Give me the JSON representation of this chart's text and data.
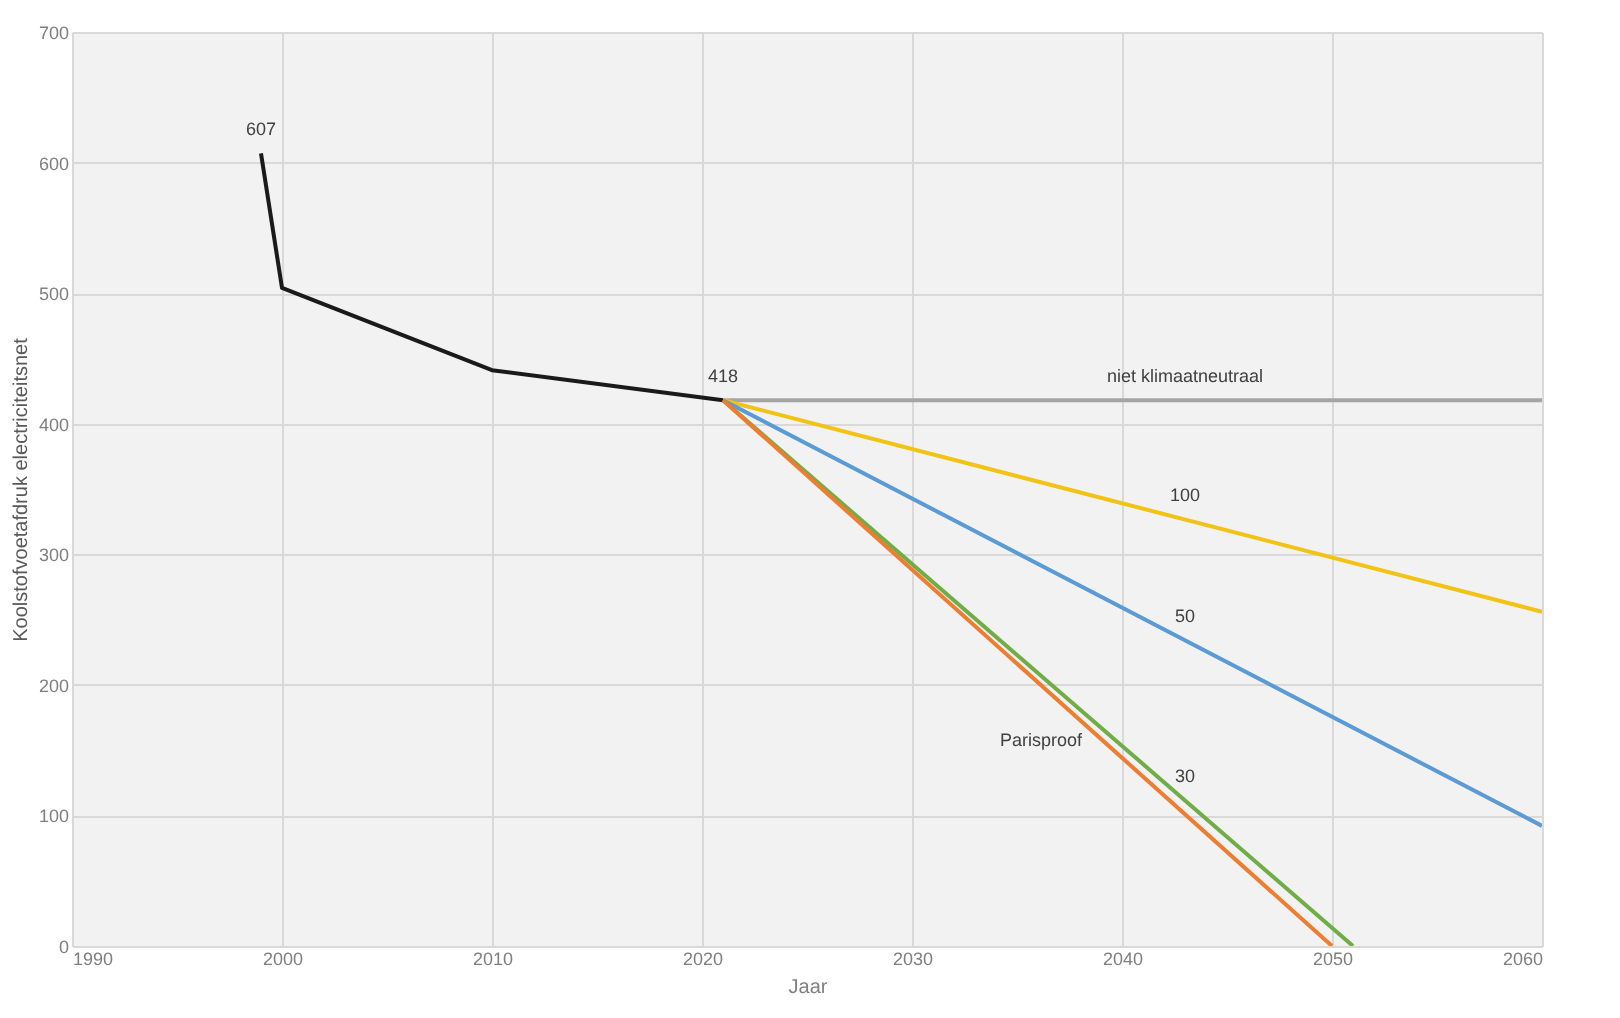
{
  "chart_data": {
    "type": "line",
    "xlabel": "Jaar",
    "ylabel": "Koolstofvoetafdruk electriciteitsnet",
    "xlim": [
      1990,
      2060
    ],
    "xticks": [
      1990,
      2000,
      2010,
      2020,
      2030,
      2040,
      2050,
      2060
    ],
    "ylim": [
      0,
      700
    ],
    "yticks": [
      0,
      100,
      200,
      300,
      400,
      500,
      600,
      700
    ],
    "grid": true,
    "marker": "none",
    "line_style": "solid",
    "series": [
      {
        "color": "#1a1a1a",
        "x": [
          1999,
          2000,
          2010,
          2021
        ],
        "values": [
          607,
          504,
          441,
          418
        ]
      },
      {
        "color": "#a5a5a5",
        "x": [
          2021,
          2060
        ],
        "values": [
          418,
          418
        ]
      },
      {
        "color": "#f2c314",
        "x": [
          2021,
          2060
        ],
        "values": [
          418,
          256
        ]
      },
      {
        "color": "#5b9bd5",
        "x": [
          2021,
          2060
        ],
        "values": [
          418,
          92
        ]
      },
      {
        "color": "#70ad47",
        "x": [
          2021,
          2051
        ],
        "values": [
          418,
          0
        ]
      },
      {
        "color": "#ed7d31",
        "x": [
          2021,
          2050
        ],
        "values": [
          418,
          0
        ]
      }
    ],
    "annotations": [
      {
        "text": "607",
        "x": 1999,
        "y": 607
      },
      {
        "text": "418",
        "x": 2021,
        "y": 418
      },
      {
        "text": "niet klimaatneutraal",
        "x": 2043,
        "y": 418
      },
      {
        "text": "100",
        "x": 2043,
        "y": 327
      },
      {
        "text": "50",
        "x": 2043,
        "y": 234
      },
      {
        "text": "30",
        "x": 2043,
        "y": 112
      },
      {
        "text": "Parisproof",
        "x": 2039,
        "y": 158
      }
    ]
  }
}
